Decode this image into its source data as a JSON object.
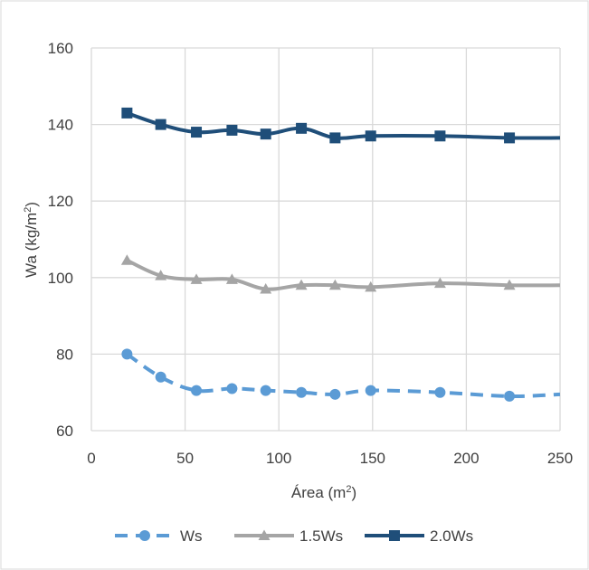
{
  "chart_data": {
    "type": "line",
    "xlabel": "Área (m",
    "xlabel_sup": "2",
    "xlabel_end": ")",
    "ylabel": "Wa (kg/m",
    "ylabel_sup": "2",
    "ylabel_end": ")",
    "xlim": [
      0,
      250
    ],
    "ylim": [
      60,
      160
    ],
    "x_ticks": [
      0,
      50,
      100,
      150,
      200,
      250
    ],
    "y_ticks": [
      60,
      80,
      100,
      120,
      140,
      160
    ],
    "x_tick_labels": [
      "0",
      "50",
      "100",
      "150",
      "200",
      "250"
    ],
    "y_tick_labels": [
      "60",
      "80",
      "100",
      "120",
      "140",
      "160"
    ],
    "grid": true,
    "legend_position": "bottom",
    "series": [
      {
        "name": "Ws",
        "color": "#5b9bd5",
        "line_style": "dashed",
        "marker": "circle",
        "x": [
          19,
          37,
          56,
          75,
          93,
          112,
          130,
          149,
          186,
          223,
          250
        ],
        "y": [
          80,
          74,
          70.5,
          71,
          70.5,
          70,
          69.5,
          70.5,
          70,
          69,
          69.5
        ],
        "marker_count": 10
      },
      {
        "name": "1.5Ws",
        "color": "#a5a5a5",
        "line_style": "solid",
        "marker": "triangle",
        "x": [
          19,
          37,
          56,
          75,
          93,
          112,
          130,
          149,
          186,
          223,
          250
        ],
        "y": [
          104.5,
          100.5,
          99.5,
          99.5,
          97,
          98,
          98,
          97.5,
          98.5,
          98,
          98
        ],
        "marker_count": 10
      },
      {
        "name": "2.0Ws",
        "color": "#1f4e79",
        "line_style": "solid",
        "marker": "square",
        "x": [
          19,
          37,
          56,
          75,
          93,
          112,
          130,
          149,
          186,
          223,
          250
        ],
        "y": [
          143,
          140,
          138,
          138.5,
          137.5,
          139,
          136.5,
          137,
          137,
          136.5,
          136.5
        ],
        "marker_count": 10
      }
    ]
  }
}
